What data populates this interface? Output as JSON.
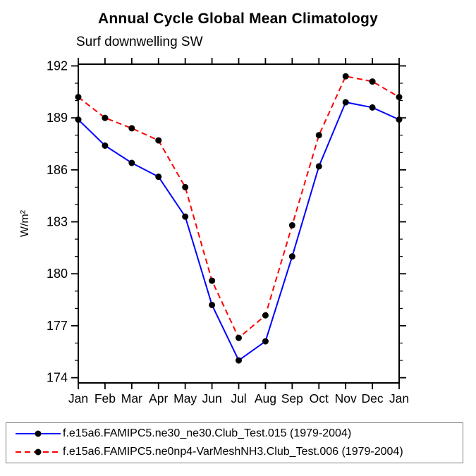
{
  "chart_data": {
    "type": "line",
    "title": "Annual Cycle Global Mean Climatology",
    "subtitle": "Surf downwelling SW",
    "ylabel": "W/m²",
    "x_categories": [
      "Jan",
      "Feb",
      "Mar",
      "Apr",
      "May",
      "Jun",
      "Jul",
      "Aug",
      "Sep",
      "Oct",
      "Nov",
      "Dec",
      "Jan"
    ],
    "ylim": [
      173.7,
      192.1
    ],
    "yticks_major": [
      174,
      177,
      180,
      183,
      186,
      189,
      192
    ],
    "ytick_minor_step": 1,
    "grid": false,
    "legend_position": "bottom",
    "axis_color": "#000000",
    "marker_color": "#000000",
    "marker_shape": "filled-circle",
    "series": [
      {
        "name": "f.e15a6.FAMIPC5.ne30_ne30.Club_Test.015 (1979-2004)",
        "color": "#0000ff",
        "line_style": "solid",
        "values": [
          188.9,
          187.4,
          186.4,
          185.6,
          183.3,
          178.2,
          175.0,
          176.1,
          181.0,
          186.2,
          189.9,
          189.6,
          188.9
        ]
      },
      {
        "name": "f.e15a6.FAMIPC5.ne0np4-VarMeshNH3.Club_Test.006 (1979-2004)",
        "color": "#ff0000",
        "line_style": "dashed",
        "values": [
          190.2,
          189.0,
          188.4,
          187.7,
          185.0,
          179.6,
          176.3,
          177.6,
          182.8,
          188.0,
          191.4,
          191.1,
          190.2
        ]
      }
    ]
  }
}
